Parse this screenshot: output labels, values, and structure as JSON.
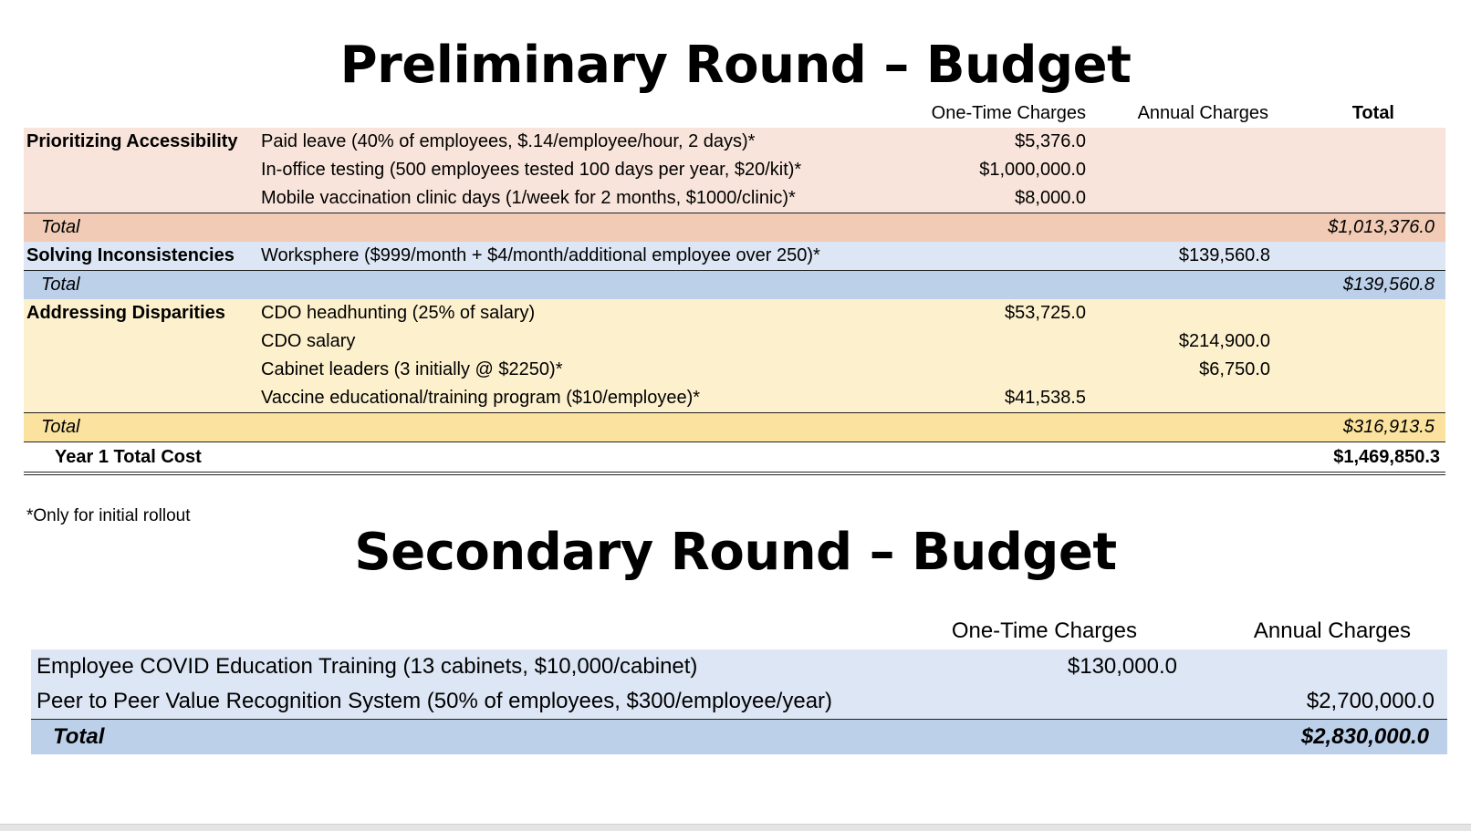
{
  "prelim": {
    "title": "Preliminary Round – Budget",
    "headers": {
      "one_time": "One-Time Charges",
      "annual": "Annual Charges",
      "total": "Total"
    },
    "sections": [
      {
        "category": "Prioritizing Accessibility",
        "items": [
          {
            "desc": "Paid leave (40% of employees, $.14/employee/hour, 2 days)*",
            "one_time": "$5,376.0",
            "annual": ""
          },
          {
            "desc": "In-office testing (500 employees tested 100 days per year, $20/kit)*",
            "one_time": "$1,000,000.0",
            "annual": ""
          },
          {
            "desc": "Mobile vaccination clinic days (1/week for 2 months, $1000/clinic)*",
            "one_time": "$8,000.0",
            "annual": ""
          }
        ],
        "total_label": "Total",
        "total": "$1,013,376.0"
      },
      {
        "category": "Solving Inconsistencies",
        "items": [
          {
            "desc": "Worksphere ($999/month + $4/month/additional employee over 250)*",
            "one_time": "",
            "annual": "$139,560.8"
          }
        ],
        "total_label": "Total",
        "total": "$139,560.8"
      },
      {
        "category": "Addressing Disparities",
        "items": [
          {
            "desc": "CDO headhunting (25% of salary)",
            "one_time": "$53,725.0",
            "annual": ""
          },
          {
            "desc": "CDO salary",
            "one_time": "",
            "annual": "$214,900.0"
          },
          {
            "desc": "Cabinet leaders (3 initially @ $2250)*",
            "one_time": "",
            "annual": "$6,750.0"
          },
          {
            "desc": "Vaccine educational/training program ($10/employee)*",
            "one_time": "$41,538.5",
            "annual": ""
          }
        ],
        "total_label": "Total",
        "total": "$316,913.5"
      }
    ],
    "year_total_label": "Year 1 Total Cost",
    "year_total": "$1,469,850.3",
    "footnote": "*Only for initial rollout"
  },
  "secondary": {
    "title": "Secondary Round – Budget",
    "headers": {
      "one_time": "One-Time Charges",
      "annual": "Annual Charges"
    },
    "items": [
      {
        "desc": "Employee COVID Education Training (13 cabinets, $10,000/cabinet)",
        "one_time": "$130,000.0",
        "annual": ""
      },
      {
        "desc": "Peer to Peer Value Recognition System (50% of employees, $300/employee/year)",
        "one_time": "",
        "annual": "$2,700,000.0"
      }
    ],
    "total_label": "Total",
    "total": "$2,830,000.0"
  }
}
